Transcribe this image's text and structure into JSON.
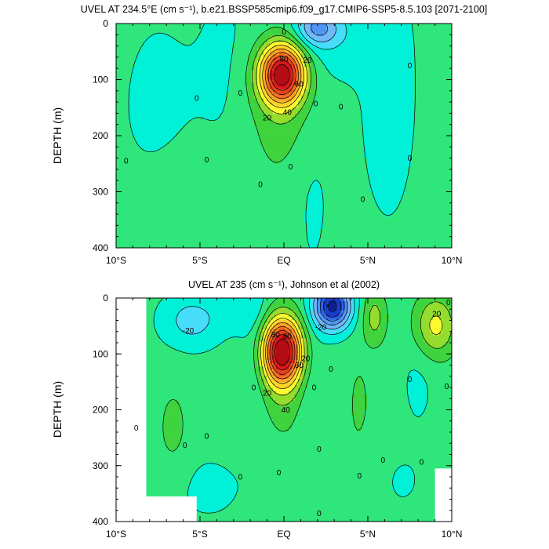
{
  "chart_data": [
    {
      "type": "heatmap",
      "subtype": "filled-contour",
      "title": "UVEL AT 234.5°E (cm s⁻¹), b.e21.BSSP585cmip6.f09_g17.CMIP6-SSP5-8.5.103 [2071-2100]",
      "ylabel": "DEPTH (m)",
      "xlabel": "",
      "xlim": [
        -10,
        10
      ],
      "ylim": [
        400,
        0
      ],
      "x_ticks": [
        {
          "value": -10,
          "label": "10°S"
        },
        {
          "value": -5,
          "label": "5°S"
        },
        {
          "value": 0,
          "label": "EQ"
        },
        {
          "value": 5,
          "label": "5°N"
        },
        {
          "value": 10,
          "label": "10°N"
        }
      ],
      "y_ticks": [
        {
          "value": 0,
          "label": "0"
        },
        {
          "value": 100,
          "label": "100"
        },
        {
          "value": 200,
          "label": "200"
        },
        {
          "value": 300,
          "label": "300"
        },
        {
          "value": 400,
          "label": "400"
        }
      ],
      "contour_interval": 10,
      "features": {
        "undercurrent_core": {
          "lat": -0.1,
          "depth": 90,
          "max": 95
        },
        "surface_westward": {
          "lat": 2.0,
          "depth": 10,
          "min": -20
        }
      },
      "contour_labels": [
        {
          "lat": 0.0,
          "depth": 15,
          "text": "0"
        },
        {
          "lat": 1.4,
          "depth": 65,
          "text": "20"
        },
        {
          "lat": 0.0,
          "depth": 63,
          "text": "80"
        },
        {
          "lat": 0.9,
          "depth": 108,
          "text": "60"
        },
        {
          "lat": 0.2,
          "depth": 158,
          "text": "40"
        },
        {
          "lat": -1.0,
          "depth": 168,
          "text": "20"
        },
        {
          "lat": 7.5,
          "depth": 75,
          "text": "0"
        },
        {
          "lat": -5.2,
          "depth": 133,
          "text": "0"
        },
        {
          "lat": -2.6,
          "depth": 124,
          "text": "0"
        },
        {
          "lat": 1.9,
          "depth": 143,
          "text": "0"
        },
        {
          "lat": 3.4,
          "depth": 148,
          "text": "0"
        },
        {
          "lat": -9.4,
          "depth": 245,
          "text": "0"
        },
        {
          "lat": -4.6,
          "depth": 243,
          "text": "0"
        },
        {
          "lat": 0.4,
          "depth": 255,
          "text": "0"
        },
        {
          "lat": 7.5,
          "depth": 240,
          "text": "0"
        },
        {
          "lat": -1.4,
          "depth": 287,
          "text": "0"
        },
        {
          "lat": 4.7,
          "depth": 313,
          "text": "0"
        }
      ]
    },
    {
      "type": "heatmap",
      "subtype": "filled-contour",
      "title": "UVEL AT 235 (cm s⁻¹), Johnson et al (2002)",
      "ylabel": "DEPTH (m)",
      "xlabel": "",
      "xlim": [
        -10,
        10
      ],
      "ylim": [
        400,
        0
      ],
      "x_ticks": [
        {
          "value": -10,
          "label": "10°S"
        },
        {
          "value": -5,
          "label": "5°S"
        },
        {
          "value": 0,
          "label": "EQ"
        },
        {
          "value": 5,
          "label": "5°N"
        },
        {
          "value": 10,
          "label": "10°N"
        }
      ],
      "y_ticks": [
        {
          "value": 0,
          "label": "0"
        },
        {
          "value": 100,
          "label": "100"
        },
        {
          "value": 200,
          "label": "200"
        },
        {
          "value": 300,
          "label": "300"
        },
        {
          "value": 400,
          "label": "400"
        }
      ],
      "contour_interval": 10,
      "features": {
        "undercurrent_core": {
          "lat": -0.1,
          "depth": 95,
          "max": 95
        },
        "surface_westward": {
          "lat": 2.9,
          "depth": 15,
          "min": -60
        }
      },
      "contour_labels": [
        {
          "lat": -5.7,
          "depth": 58,
          "text": "-20"
        },
        {
          "lat": -0.5,
          "depth": 65,
          "text": "80"
        },
        {
          "lat": 0.2,
          "depth": 68,
          "text": "80"
        },
        {
          "lat": 2.2,
          "depth": 52,
          "text": "-20"
        },
        {
          "lat": 9.1,
          "depth": 28,
          "text": "20"
        },
        {
          "lat": 1.3,
          "depth": 108,
          "text": "20"
        },
        {
          "lat": 0.9,
          "depth": 120,
          "text": "60"
        },
        {
          "lat": -1.0,
          "depth": 170,
          "text": "20"
        },
        {
          "lat": 0.1,
          "depth": 200,
          "text": "40"
        },
        {
          "lat": -8.8,
          "depth": 232,
          "text": "0"
        },
        {
          "lat": -5.9,
          "depth": 263,
          "text": "0"
        },
        {
          "lat": -4.6,
          "depth": 247,
          "text": "0"
        },
        {
          "lat": 2.1,
          "depth": 270,
          "text": "0"
        },
        {
          "lat": -1.8,
          "depth": 160,
          "text": "0"
        },
        {
          "lat": 1.8,
          "depth": 160,
          "text": "0"
        },
        {
          "lat": 2.8,
          "depth": 127,
          "text": "0"
        },
        {
          "lat": 7.5,
          "depth": 145,
          "text": "0"
        },
        {
          "lat": 9.7,
          "depth": 158,
          "text": "0"
        },
        {
          "lat": 9.8,
          "depth": 8,
          "text": "0"
        },
        {
          "lat": -0.3,
          "depth": 312,
          "text": "0"
        },
        {
          "lat": -2.6,
          "depth": 320,
          "text": "0"
        },
        {
          "lat": 5.9,
          "depth": 290,
          "text": "0"
        },
        {
          "lat": 8.2,
          "depth": 293,
          "text": "0"
        },
        {
          "lat": 2.1,
          "depth": 385,
          "text": "0"
        },
        {
          "lat": 4.5,
          "depth": 318,
          "text": "0"
        }
      ],
      "no_data_regions": [
        {
          "lat_range": [
            -10,
            -8.2
          ],
          "depth_range": [
            0,
            400
          ]
        },
        {
          "lat_range": [
            -8.2,
            -5.2
          ],
          "depth_range": [
            355,
            400
          ]
        },
        {
          "lat_range": [
            9.0,
            10
          ],
          "depth_range": [
            305,
            400
          ]
        }
      ]
    }
  ],
  "colors": {
    "levels": [
      -60,
      -50,
      -40,
      -30,
      -20,
      -10,
      0,
      10,
      20,
      30,
      40,
      50,
      60,
      70,
      80,
      90
    ],
    "fills": [
      "#0a1f8c",
      "#1a3cc8",
      "#2f63e6",
      "#4f95f4",
      "#73b9f8",
      "#47dcfa",
      "#00f0d8",
      "#2ee67a",
      "#3fd33d",
      "#95dc2f",
      "#fcfb2f",
      "#fed22b",
      "#fba327",
      "#f46f22",
      "#e8401f",
      "#d7191c",
      "#b30d16"
    ]
  }
}
